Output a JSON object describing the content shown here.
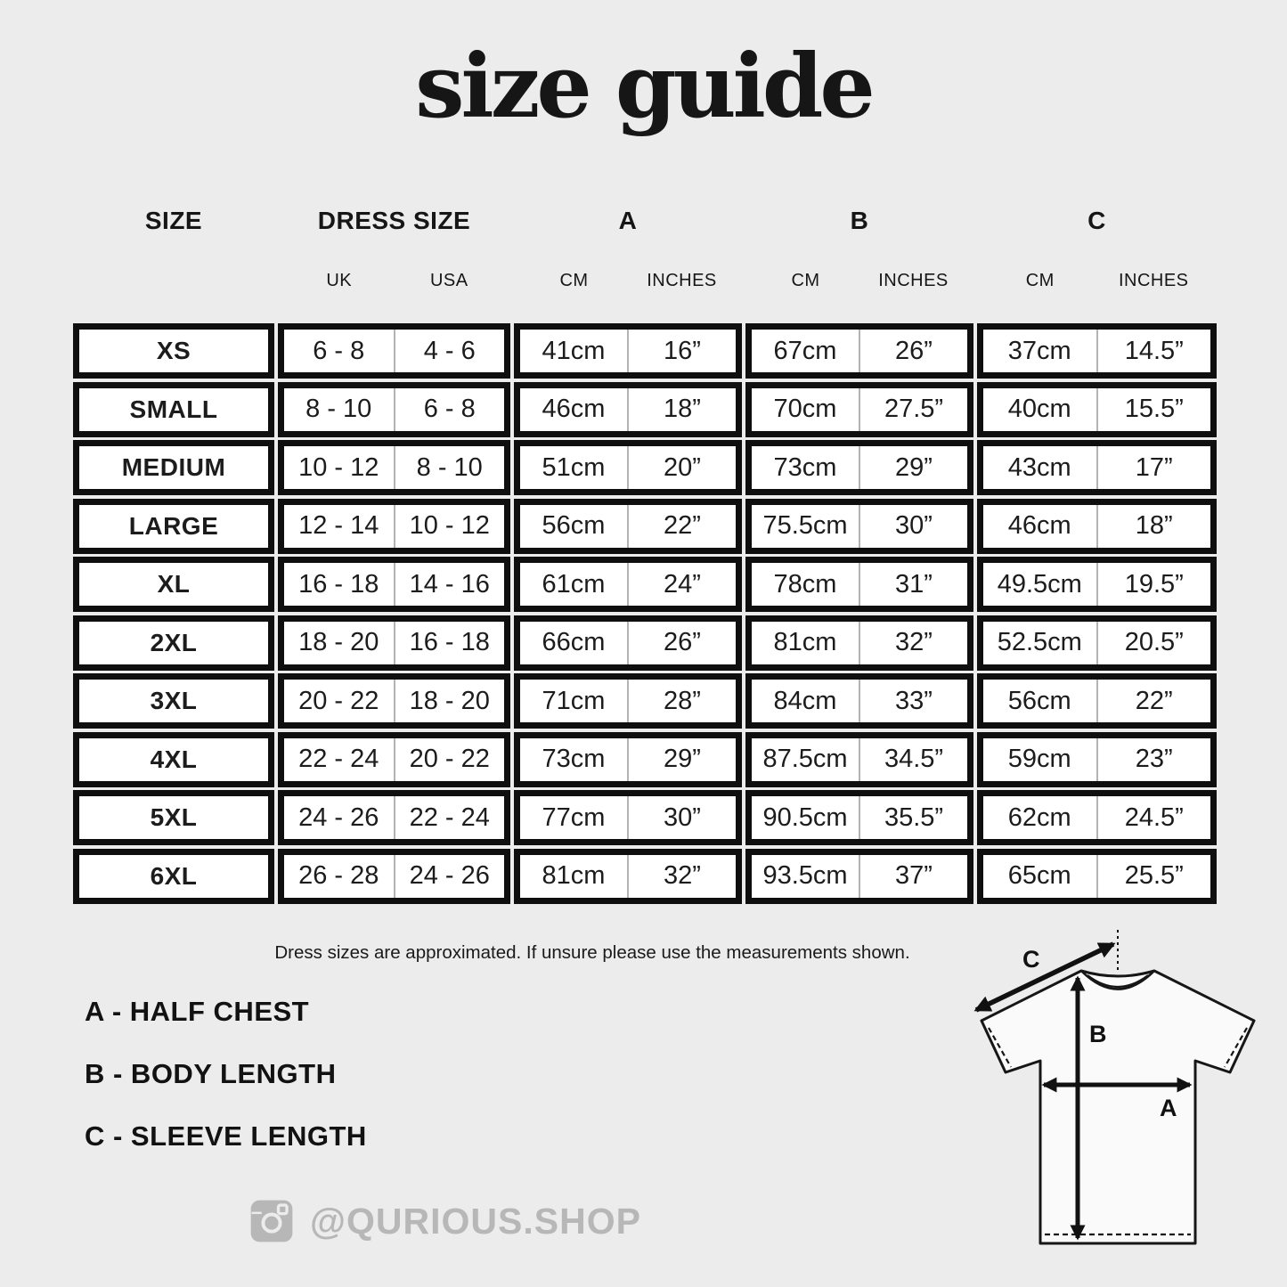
{
  "title": "size guide",
  "table": {
    "headers": {
      "size": "SIZE",
      "dress_size": "DRESS SIZE",
      "a": "A",
      "b": "B",
      "c": "C",
      "uk": "UK",
      "usa": "USA",
      "cm": "CM",
      "inches": "INCHES"
    },
    "rows": [
      {
        "size": "XS",
        "uk": "6 - 8",
        "usa": "4 - 6",
        "a_cm": "41cm",
        "a_in": "16”",
        "b_cm": "67cm",
        "b_in": "26”",
        "c_cm": "37cm",
        "c_in": "14.5”"
      },
      {
        "size": "SMALL",
        "uk": "8 - 10",
        "usa": "6 - 8",
        "a_cm": "46cm",
        "a_in": "18”",
        "b_cm": "70cm",
        "b_in": "27.5”",
        "c_cm": "40cm",
        "c_in": "15.5”"
      },
      {
        "size": "MEDIUM",
        "uk": "10 - 12",
        "usa": "8 - 10",
        "a_cm": "51cm",
        "a_in": "20”",
        "b_cm": "73cm",
        "b_in": "29”",
        "c_cm": "43cm",
        "c_in": "17”"
      },
      {
        "size": "LARGE",
        "uk": "12 - 14",
        "usa": "10 - 12",
        "a_cm": "56cm",
        "a_in": "22”",
        "b_cm": "75.5cm",
        "b_in": "30”",
        "c_cm": "46cm",
        "c_in": "18”"
      },
      {
        "size": "XL",
        "uk": "16 - 18",
        "usa": "14 - 16",
        "a_cm": "61cm",
        "a_in": "24”",
        "b_cm": "78cm",
        "b_in": "31”",
        "c_cm": "49.5cm",
        "c_in": "19.5”"
      },
      {
        "size": "2XL",
        "uk": "18 - 20",
        "usa": "16 - 18",
        "a_cm": "66cm",
        "a_in": "26”",
        "b_cm": "81cm",
        "b_in": "32”",
        "c_cm": "52.5cm",
        "c_in": "20.5”"
      },
      {
        "size": "3XL",
        "uk": "20 - 22",
        "usa": "18 - 20",
        "a_cm": "71cm",
        "a_in": "28”",
        "b_cm": "84cm",
        "b_in": "33”",
        "c_cm": "56cm",
        "c_in": "22”"
      },
      {
        "size": "4XL",
        "uk": "22 - 24",
        "usa": "20 - 22",
        "a_cm": "73cm",
        "a_in": "29”",
        "b_cm": "87.5cm",
        "b_in": "34.5”",
        "c_cm": "59cm",
        "c_in": "23”"
      },
      {
        "size": "5XL",
        "uk": "24 - 26",
        "usa": "22 - 24",
        "a_cm": "77cm",
        "a_in": "30”",
        "b_cm": "90.5cm",
        "b_in": "35.5”",
        "c_cm": "62cm",
        "c_in": "24.5”"
      },
      {
        "size": "6XL",
        "uk": "26 - 28",
        "usa": "24 - 26",
        "a_cm": "81cm",
        "a_in": "32”",
        "b_cm": "93.5cm",
        "b_in": "37”",
        "c_cm": "65cm",
        "c_in": "25.5”"
      }
    ]
  },
  "note": "Dress sizes are approximated. If unsure please use the measurements shown.",
  "legend": [
    "A - HALF CHEST",
    "B - BODY LENGTH",
    "C - SLEEVE LENGTH"
  ],
  "social": {
    "icon": "instagram-icon",
    "handle": "@QURIOUS.SHOP"
  },
  "diagram": {
    "labels": {
      "a": "A",
      "b": "B",
      "c": "C"
    }
  },
  "colors": {
    "background": "#ececec",
    "cell_background": "#ffffff",
    "table_border": "#0f0f0f",
    "cell_divider": "#b3b3b3",
    "muted_gray": "#b7b7b7",
    "text": "#121212"
  },
  "chart_data": {
    "type": "table",
    "title": "size guide",
    "columns": [
      "SIZE",
      "DRESS SIZE UK",
      "DRESS SIZE USA",
      "A CM",
      "A INCHES",
      "B CM",
      "B INCHES",
      "C CM",
      "C INCHES"
    ],
    "rows": [
      [
        "XS",
        "6 - 8",
        "4 - 6",
        "41cm",
        "16”",
        "67cm",
        "26”",
        "37cm",
        "14.5”"
      ],
      [
        "SMALL",
        "8 - 10",
        "6 - 8",
        "46cm",
        "18”",
        "70cm",
        "27.5”",
        "40cm",
        "15.5”"
      ],
      [
        "MEDIUM",
        "10 - 12",
        "8 - 10",
        "51cm",
        "20”",
        "73cm",
        "29”",
        "43cm",
        "17”"
      ],
      [
        "LARGE",
        "12 - 14",
        "10 - 12",
        "56cm",
        "22”",
        "75.5cm",
        "30”",
        "46cm",
        "18”"
      ],
      [
        "XL",
        "16 - 18",
        "14 - 16",
        "61cm",
        "24”",
        "78cm",
        "31”",
        "49.5cm",
        "19.5”"
      ],
      [
        "2XL",
        "18 - 20",
        "16 - 18",
        "66cm",
        "26”",
        "81cm",
        "32”",
        "52.5cm",
        "20.5”"
      ],
      [
        "3XL",
        "20 - 22",
        "18 - 20",
        "71cm",
        "28”",
        "84cm",
        "33”",
        "56cm",
        "22”"
      ],
      [
        "4XL",
        "22 - 24",
        "20 - 22",
        "73cm",
        "29”",
        "87.5cm",
        "34.5”",
        "59cm",
        "23”"
      ],
      [
        "5XL",
        "24 - 26",
        "22 - 24",
        "77cm",
        "30”",
        "90.5cm",
        "35.5”",
        "62cm",
        "24.5”"
      ],
      [
        "6XL",
        "26 - 28",
        "24 - 26",
        "81cm",
        "32”",
        "93.5cm",
        "37”",
        "65cm",
        "25.5”"
      ]
    ],
    "footnotes": {
      "A": "HALF CHEST",
      "B": "BODY LENGTH",
      "C": "SLEEVE LENGTH"
    }
  }
}
